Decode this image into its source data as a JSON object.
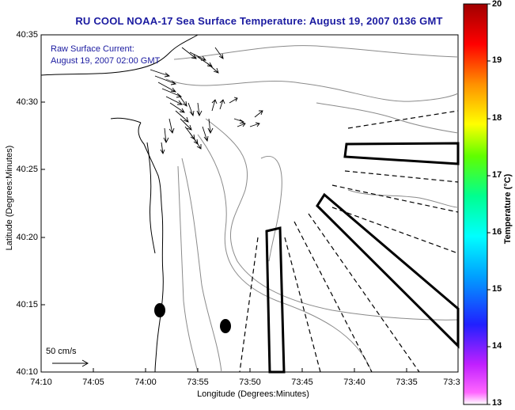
{
  "title": "RU COOL  NOAA-17  Sea Surface Temperature:  August 19, 2007 0136 GMT",
  "current_note": {
    "line1": "Raw Surface Current:",
    "line2": "August 19, 2007 02:00 GMT"
  },
  "axes": {
    "xlabel": "Longitude (Degrees:Minutes)",
    "ylabel": "Latitude (Degrees:Minutes)",
    "xticks": [
      "74:10",
      "74:05",
      "74:00",
      "73:55",
      "73:50",
      "73:45",
      "73:40",
      "73:35",
      "73:3"
    ],
    "yticks": [
      "40:35",
      "40:30",
      "40:25",
      "40:20",
      "40:15",
      "40:10"
    ]
  },
  "scale_arrow": {
    "label": "50 cm/s"
  },
  "colorbar": {
    "label": "Temperature (°C)",
    "min": 13,
    "max": 20,
    "ticks": [
      "20",
      "19",
      "18",
      "17",
      "16",
      "15",
      "14",
      "13"
    ],
    "colors": [
      "#ff00ff",
      "#0000ff",
      "#00ffff",
      "#00ff80",
      "#ffff00",
      "#ff8000",
      "#ff0000",
      "#a00000"
    ]
  }
}
